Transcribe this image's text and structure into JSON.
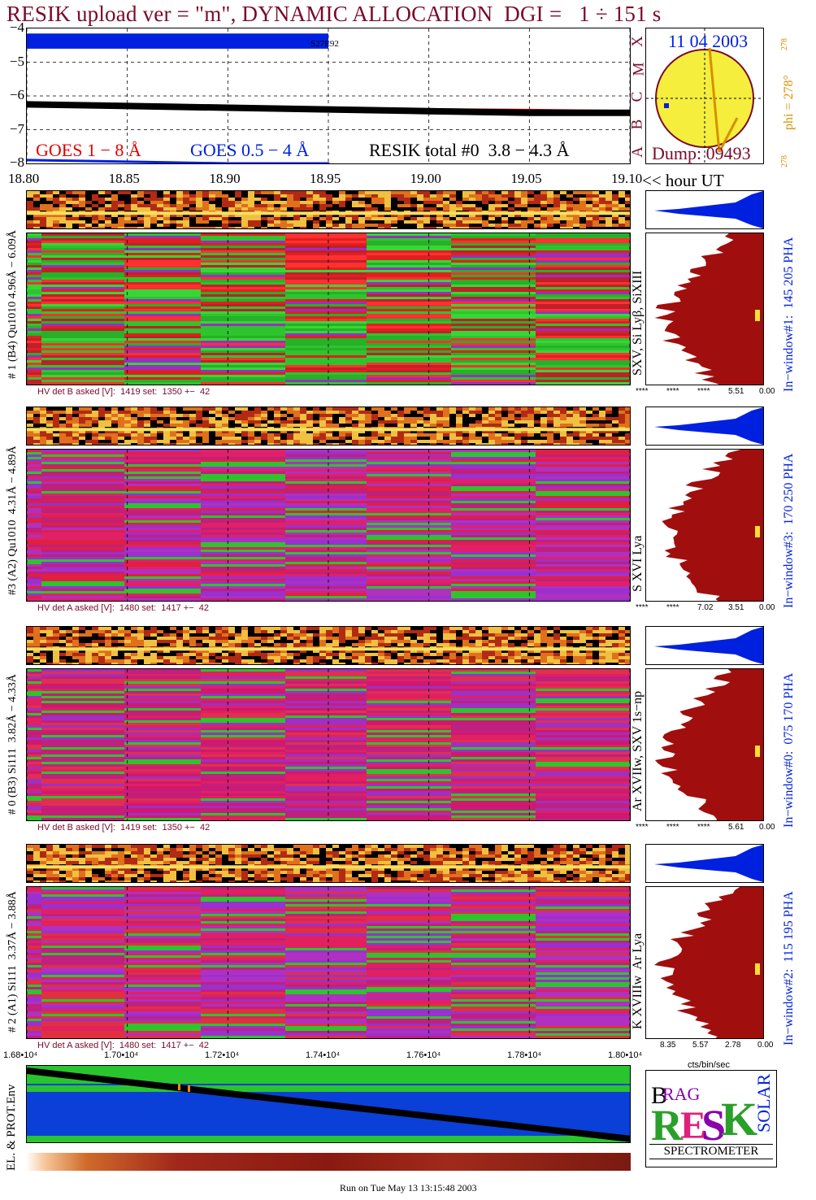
{
  "header": {
    "title": "RESIK upload ver = \"m\", DYNAMIC ALLOCATION  DGI =   1 ÷ 151 s"
  },
  "goes_plot": {
    "y_ticks": [
      "−4",
      "−5",
      "−6",
      "−7",
      "−8"
    ],
    "x_ticks": [
      "18.80",
      "18.85",
      "18.90",
      "18.95",
      "19.00",
      "19.05",
      "19.10"
    ],
    "x_unit": "<< hour UT",
    "annotation": "S27E92",
    "legend": {
      "goes_long": "GOES 1 − 8 Å",
      "goes_short": "GOES 0.5 − 4 Å",
      "resik": "RESIK total #0  3.8 − 4.3 Å"
    },
    "side_letters": [
      "A",
      "B",
      "C",
      "M",
      "X"
    ],
    "colors": {
      "goes_long": "#e00000",
      "goes_short": "#0020e0",
      "resik": "#000000"
    }
  },
  "sun_panel": {
    "date": "11 04 2003",
    "phi_label": "phi = 278°",
    "phi_small_top": "278",
    "phi_small_bottom": "278",
    "dump": "Dump: 09493",
    "disk_color": "#f5ee3c"
  },
  "channels": [
    {
      "left_label": "# 1 (B4) Qu1010 4.96Å − 6.09Å",
      "line_label": "SXV, Si Lyβ, SiXIII",
      "window_label": "In−window#1:  145 205 PHA",
      "hv_label": "HV det B asked [V]:  1419 set:  1350 +−  42",
      "axis_labels": [
        "****",
        "****",
        "****",
        "5.51",
        "0.00"
      ]
    },
    {
      "left_label": "#3 (A2) Qu1010  4.31Å − 4.89Å",
      "line_label": "S XVI Lya",
      "window_label": "In−window#3:  170 250 PHA",
      "hv_label": "HV det A asked [V]:  1480 set:  1417 +−  42",
      "axis_labels": [
        "****",
        "****",
        "7.02",
        "3.51",
        "0.00"
      ]
    },
    {
      "left_label": "# 0 (B3) Si111  3.82Å − 4.33Å",
      "line_label": "Ar XVIIw, SXV 1s−np",
      "window_label": "In−window#0:  075 170 PHA",
      "hv_label": "HV det B asked [V]:  1419 set:  1350 +−  42",
      "axis_labels": [
        "****",
        "****",
        "****",
        "5.61",
        "0.00"
      ]
    },
    {
      "left_label": "# 2 (A1) Si111  3.37Å − 3.88Å",
      "line_label": "K XVIIIw  Ar Lya",
      "window_label": "In−window#2:  115 195 PHA",
      "hv_label": "HV det A asked [V]:  1480 set:  1417 +−  42",
      "axis_labels": [
        "8.35",
        "5.57",
        "2.78",
        "0.00"
      ]
    }
  ],
  "bottom_axis": {
    "ticks": [
      "1.68•10⁴",
      "1.70•10⁴",
      "1.72•10⁴",
      "1.74•10⁴",
      "1.76•10⁴",
      "1.78•10⁴",
      "1.80•10⁴"
    ],
    "unit": "cts/bin/sec"
  },
  "env_panel": {
    "label": "EL. & PROT.Env"
  },
  "logo": {
    "letters": "BRAG RESIK SOLAR",
    "subtitle": "SPECTROMETER"
  },
  "footer": {
    "run_text": "Run on Tue May 13 13:15:48 2003"
  },
  "chart_data": [
    {
      "type": "line",
      "title": "",
      "x_range": [
        18.8,
        19.1
      ],
      "y_range": [
        -8,
        -4
      ],
      "series": [
        {
          "name": "GOES 1 − 8 Å",
          "x": [
            18.8,
            18.85,
            18.9,
            18.95,
            19.0,
            19.05,
            19.1
          ],
          "values": [
            -6.2,
            -6.25,
            -6.3,
            -6.35,
            -6.4,
            -6.42,
            -6.45
          ]
        },
        {
          "name": "GOES 0.5 − 4 Å",
          "x": [
            18.8,
            18.85,
            18.9,
            18.95
          ],
          "values": [
            -7.9,
            -7.95,
            -8.0,
            -8.0
          ]
        },
        {
          "name": "RESIK total #0  3.8 − 4.3 Å",
          "x": [
            18.8,
            18.85,
            18.9,
            18.95,
            19.0,
            19.05,
            19.1
          ],
          "values": [
            -6.25,
            -6.3,
            -6.35,
            -6.4,
            -6.45,
            -6.5,
            -6.5
          ]
        }
      ]
    }
  ]
}
